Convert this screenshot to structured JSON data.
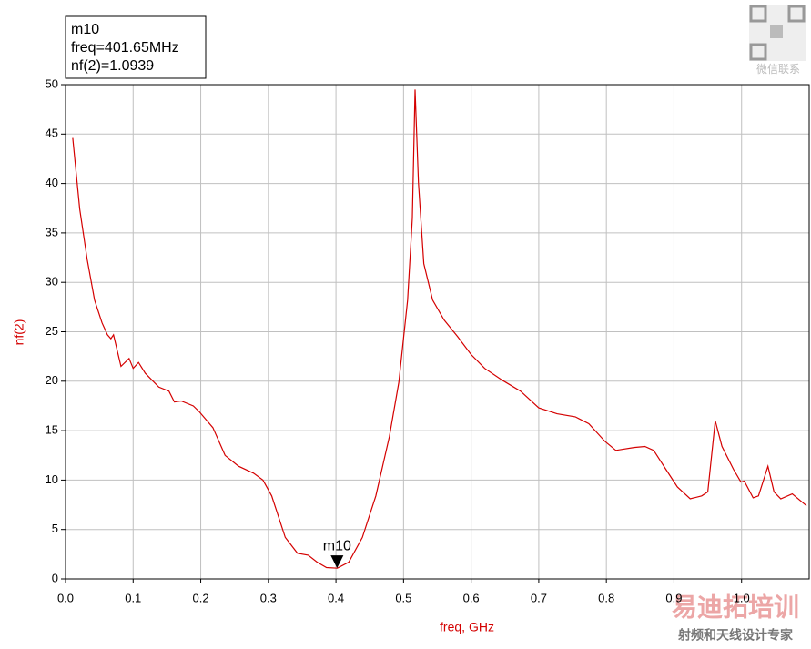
{
  "chart_data": {
    "type": "line",
    "x_label": "freq, GHz",
    "y_label": "nf(2)",
    "x": [
      0.0107,
      0.021,
      0.032,
      0.043,
      0.054,
      0.062,
      0.067,
      0.071,
      0.082,
      0.094,
      0.1,
      0.108,
      0.118,
      0.138,
      0.153,
      0.161,
      0.171,
      0.189,
      0.198,
      0.218,
      0.236,
      0.256,
      0.278,
      0.292,
      0.305,
      0.325,
      0.343,
      0.359,
      0.372,
      0.386,
      0.402,
      0.419,
      0.439,
      0.459,
      0.479,
      0.493,
      0.506,
      0.513,
      0.517,
      0.522,
      0.53,
      0.543,
      0.56,
      0.58,
      0.6,
      0.62,
      0.646,
      0.673,
      0.7,
      0.727,
      0.754,
      0.774,
      0.798,
      0.814,
      0.841,
      0.857,
      0.87,
      0.888,
      0.905,
      0.924,
      0.941,
      0.95,
      0.961,
      0.971,
      0.988,
      0.999,
      1.004,
      1.017,
      1.025,
      1.039,
      1.048,
      1.058,
      1.075,
      1.096
    ],
    "series": [
      {
        "color": "#d40000",
        "values": [
          44.6,
          37.4,
          32.3,
          28.2,
          25.9,
          24.7,
          24.3,
          24.7,
          21.5,
          22.3,
          21.3,
          21.9,
          20.8,
          19.4,
          19.0,
          17.9,
          18.0,
          17.5,
          16.9,
          15.3,
          12.5,
          11.4,
          10.7,
          10.0,
          8.4,
          4.2,
          2.6,
          2.4,
          1.7,
          1.15,
          1.09,
          1.7,
          4.2,
          8.4,
          14.4,
          19.9,
          28.2,
          36.5,
          49.5,
          40.1,
          31.9,
          28.2,
          26.2,
          24.5,
          22.7,
          21.3,
          20.1,
          19.0,
          17.3,
          16.7,
          16.4,
          15.7,
          13.9,
          13.0,
          13.3,
          13.4,
          13.0,
          11.1,
          9.3,
          8.1,
          8.4,
          8.8,
          16.0,
          13.4,
          11.1,
          9.8,
          9.9,
          8.2,
          8.4,
          11.4,
          8.8,
          8.1,
          8.6,
          7.4
        ]
      }
    ],
    "xlim": [
      0,
      1.1
    ],
    "ylim": [
      0,
      50
    ],
    "xticks": [
      {
        "value": 0,
        "label": "0.0"
      },
      0.1,
      0.2,
      0.3,
      0.4,
      0.5,
      0.6,
      0.7,
      0.8,
      0.9,
      {
        "value": 1,
        "label": "1.0"
      }
    ],
    "yticks": [
      0,
      5,
      10,
      15,
      20,
      25,
      30,
      35,
      40,
      45,
      50
    ],
    "grid": true,
    "marker": {
      "name": "m10",
      "x": 0.40165,
      "y": 1.0939,
      "lines": [
        "freq=401.65MHz",
        "nf(2)=1.0939"
      ]
    }
  },
  "watermarks": [
    "微信联系",
    "易迪拓培训",
    "射频和天线设计专家"
  ]
}
